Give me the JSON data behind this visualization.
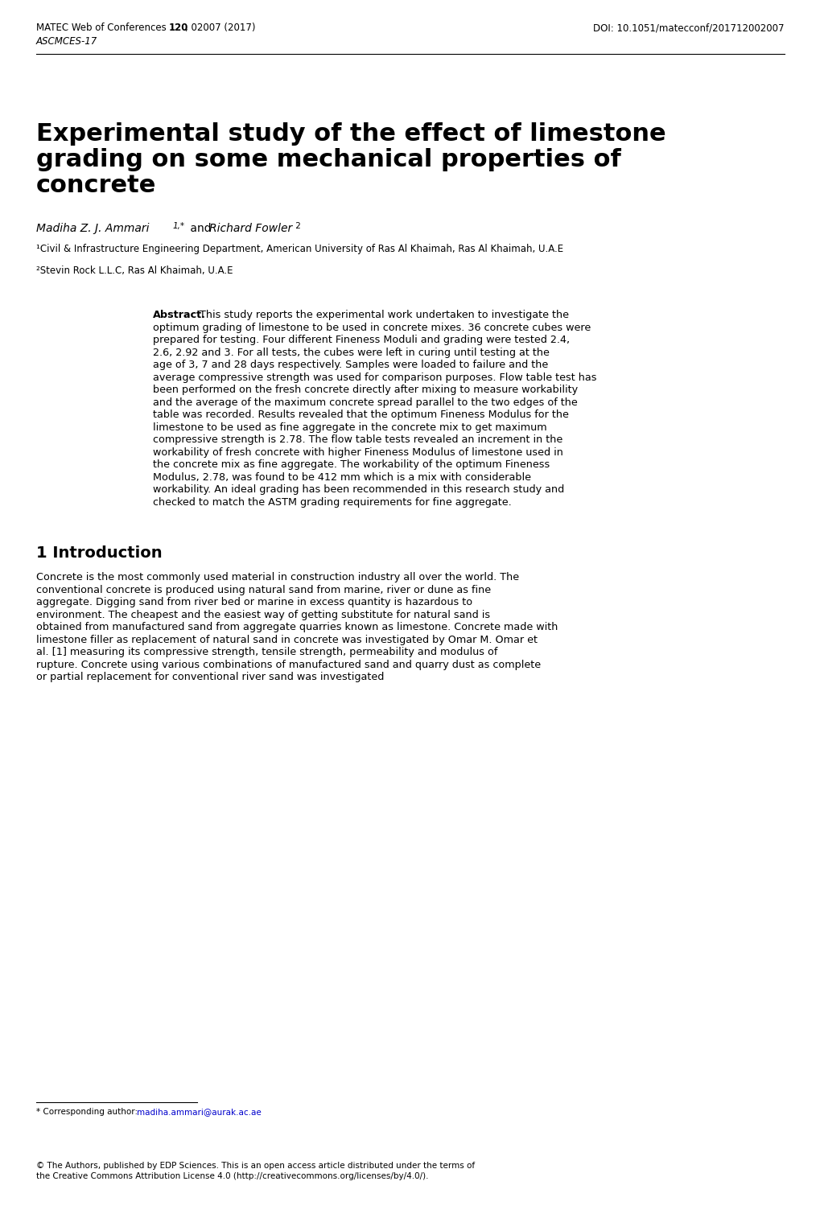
{
  "bg_color": "#ffffff",
  "header_left": "MATEC Web of Conferences ",
  "header_left_bold": "120",
  "header_left_rest": ", 02007 (2017)",
  "header_right": "DOI: 10.1051/matecconf/201712002007",
  "header_italic": "ASCMCES-17",
  "title_line1": "Experimental study of the effect of limestone",
  "title_line2": "grading on some mechanical properties of",
  "title_line3": "concrete",
  "authors": "Madiha Z. J. Ammari",
  "authors_super": "1,*",
  "authors_and": " and ",
  "authors2": "Richard Fowler",
  "authors2_super": " 2",
  "affil1": "¹Civil & Infrastructure Engineering Department, American University of Ras Al Khaimah, Ras Al Khaimah, U.A.E",
  "affil2": "²Stevin Rock L.L.C, Ras Al Khaimah, U.A.E",
  "abstract_label": "Abstract.",
  "abstract_text": " This study reports the experimental work undertaken to investigate the optimum grading of limestone to be used in concrete mixes. 36 concrete cubes were prepared for testing. Four different Fineness Moduli and grading were tested 2.4, 2.6, 2.92 and 3. For all tests, the cubes were left in curing until testing at the age of 3, 7 and 28 days respectively. Samples were loaded to failure and the average compressive strength was used for comparison purposes. Flow table test has been performed on the fresh concrete directly after mixing to measure workability and the average of the maximum concrete spread parallel to the two edges of the table was recorded. Results revealed that the optimum Fineness Modulus for the limestone to be used as fine aggregate in the concrete mix to get maximum compressive strength is 2.78. The flow table tests revealed an increment in the workability of fresh concrete with higher Fineness Modulus of limestone used in the concrete mix as fine aggregate. The workability of the optimum Fineness Modulus, 2.78, was found to be 412 mm which is a mix with considerable workability. An ideal grading has been recommended in this research study and checked to match the ASTM grading requirements for fine aggregate.",
  "section1_title": "1 Introduction",
  "section1_text": "Concrete is the most commonly used material in construction industry all over the world. The conventional concrete is produced using natural sand from marine, river or dune as fine aggregate. Digging sand from river bed or marine in excess quantity is hazardous to environment. The cheapest and the easiest way of getting substitute for natural sand is obtained from manufactured sand from aggregate quarries known as limestone. Concrete made with limestone filler as replacement of natural sand in concrete was investigated by Omar M. Omar et al. [1] measuring its compressive strength, tensile strength, permeability and modulus of rupture. Concrete using various combinations of manufactured sand and quarry dust as complete or partial replacement for conventional river sand was investigated",
  "footnote_prefix": "* Corresponding author: ",
  "footnote_email": "madiha.ammari@aurak.ac.ae",
  "copyright_text": "© The Authors, published by EDP Sciences. This is an open access article distributed under the terms of the Creative Commons Attribution License 4.0 (http://creativecommons.org/licenses/by/4.0/)."
}
